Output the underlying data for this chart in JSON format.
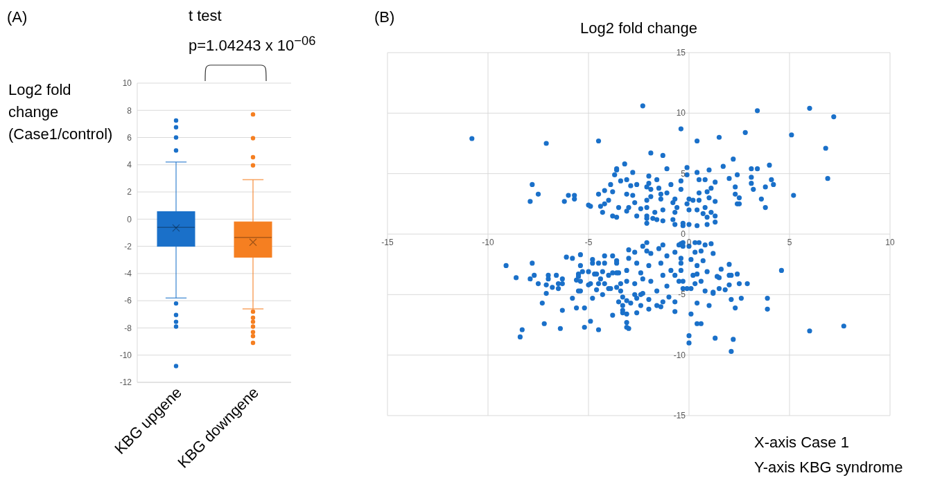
{
  "chart_data": [
    {
      "type": "box",
      "annotations": [
        "(A)",
        "t test",
        "p=1.04243 x 10$^{−06}$"
      ],
      "ylabel": "Log2 fold change (Case1/control)",
      "categories": [
        "KBG upgene",
        "KBG downgene"
      ],
      "colors": [
        "#1a70c9",
        "#f57f21"
      ],
      "boxes": [
        {
          "low": -5.8,
          "q1": -2,
          "median": -0.6,
          "q3": 0.55,
          "high": 4.2,
          "mean": -0.65,
          "outliers": [
            7.25,
            6.75,
            6,
            5.05,
            -6.2,
            -7.05,
            -7.55,
            -7.9,
            -10.8
          ]
        },
        {
          "low": -6.6,
          "q1": -2.8,
          "median": -1.35,
          "q3": -0.2,
          "high": 2.9,
          "mean": -1.7,
          "outliers": [
            7.7,
            5.95,
            4.55,
            3.95,
            -6.8,
            -7.25,
            -7.55,
            -7.9,
            -8.3,
            -8.6,
            -9.1
          ]
        }
      ],
      "ylim": [
        -12,
        10
      ],
      "yticks": [
        -12,
        -10,
        -8,
        -6,
        -4,
        -2,
        0,
        2,
        4,
        6,
        8,
        10
      ],
      "grid": "y"
    },
    {
      "type": "scatter",
      "title": "Log2 fold change",
      "annotations": [
        "(B)",
        "X-axis Case 1",
        "Y-axis KBG syndrome"
      ],
      "color": "#1a70c9",
      "marker": "circle",
      "grid": true,
      "x": [
        -10.8,
        -7.1,
        -4.5,
        -2.3,
        -0.4,
        -1.9,
        -1.3,
        -3.2,
        -7.8,
        -7.5,
        -7.9,
        -6.2,
        -6,
        -5.7,
        -5.7,
        -5,
        -4.9,
        -3.6,
        -3.6,
        -3.7,
        -3.4,
        -3.9,
        -4.2,
        -4.5,
        -4.4,
        -4.3,
        -4.2,
        -4,
        -3.8,
        -3.8,
        -3.6,
        -3.5,
        -3.1,
        -2.9,
        -2.8,
        -2.6,
        -3.1,
        -2.8,
        -2.7,
        -3,
        -3.1,
        -2.6,
        -2.4,
        -2,
        -2,
        -2.1,
        -1.9,
        -1.6,
        -1.5,
        -1.1,
        -2.1,
        -1.9,
        -2.1,
        -2.1,
        -2.1,
        -2.1,
        -1.8,
        -1.7,
        -1.6,
        -1.3,
        -1.4,
        -1.1,
        -1.4,
        -1.3,
        -0.9,
        -0.8,
        -0.7,
        -0.8,
        -0.7,
        -0.4,
        -0.1,
        -0.1,
        -0.4,
        0,
        -0.3,
        -0.7,
        -0.6,
        3.4,
        6,
        7.2,
        2.8,
        5.1,
        1.5,
        0.4,
        6.8,
        6.9,
        2.2,
        1.7,
        4,
        3.1,
        3.4,
        1,
        0.4,
        2.4,
        2,
        3.1,
        4.1,
        4.2,
        3.1,
        3.2,
        3.8,
        2.3,
        1.3,
        0.8,
        0.5,
        1.1,
        0.9,
        2.3,
        2.5,
        2.4,
        2.5,
        3.6,
        3.8,
        5.2,
        1.3,
        1,
        0.5,
        0.5,
        0.2,
        0.4,
        0.8,
        1.1,
        1.3,
        0.9,
        0.7,
        1.3,
        0.9,
        0.4,
        0,
        -0.3,
        0,
        -0.1,
        -9.1,
        -8.6,
        -7.8,
        -7.9,
        -7.7,
        -7.5,
        -7.1,
        -7,
        -7,
        -6.8,
        -7.1,
        -6.6,
        -6.5,
        -6.5,
        -6.3,
        -6.3,
        -7.3,
        -6.3,
        -7.2,
        -6.4,
        -8.3,
        -8.4,
        -6.1,
        -5.8,
        -5.4,
        -5.4,
        -5.3,
        -5.5,
        -5.5,
        -5.6,
        -5.4,
        -5.5,
        -5.4,
        -5.8,
        -5.6,
        -5.2,
        -5.2,
        -4.9,
        -4.5,
        -4.8,
        -5,
        -5,
        -4.9,
        -4.6,
        -4.8,
        -4.8,
        -4.7,
        -4.6,
        -4.5,
        -4.4,
        -4.5,
        -4.2,
        -4.2,
        -4.3,
        -4.2,
        -4.3,
        -3.8,
        -4,
        -3.8,
        -3.6,
        -3.6,
        -4,
        -3.9,
        -3.6,
        -3.8,
        -3.6,
        -3.5,
        -3.5,
        -3.3,
        -3.3,
        -3.3,
        -3.3,
        -3.1,
        -3.1,
        -3.1,
        -3,
        -3.4,
        -3.1,
        -2.9,
        -3,
        -3,
        -3.1,
        -3.4,
        -3.1,
        -2.7,
        -2.6,
        -2.4,
        -2.6,
        -2.7,
        -2.4,
        -2.3,
        -2,
        -2,
        -1.6,
        -1.4,
        -0.7,
        -1.3,
        -1,
        -0.7,
        -2.3,
        -2.1,
        -1.3,
        -1.5,
        -2.1,
        -1.9,
        -2,
        -2.6,
        -2.4,
        -2.7,
        -2.3,
        -1.9,
        -1.6,
        -1.3,
        -1.1,
        -1.4,
        -1.1,
        -0.7,
        -0.5,
        -0.4,
        -0.3,
        -0.7,
        -0.4,
        -0.5,
        -0.9,
        -0.1,
        0.1,
        0,
        0,
        4.6,
        2.9,
        2.5,
        2,
        2.4,
        2,
        2.1,
        2,
        1.6,
        1.5,
        1.4,
        1.5,
        1.8,
        1.2,
        1.2,
        0.8,
        2.1,
        2.6,
        3.9,
        3.9,
        2.3,
        1,
        0.4,
        0.4,
        0.6,
        1.3,
        2.2,
        2.1,
        6,
        7.7,
        1.2,
        0.8,
        1.1,
        0.5,
        0.3,
        0.6,
        0.3,
        0.1,
        0.7,
        0.4,
        0.9,
        0.4,
        0.2,
        0.6,
        0.3,
        0.1,
        -0.3,
        -0.3,
        -0.4,
        -0.4,
        -0.3,
        0
      ],
      "values": [
        7.9,
        7.5,
        7.7,
        10.6,
        8.7,
        6.7,
        6.5,
        5.8,
        4.1,
        3.3,
        2.7,
        2.7,
        3.2,
        3.2,
        2.9,
        2.4,
        2.3,
        5.4,
        5.3,
        4.9,
        4.4,
        4.1,
        3.6,
        3.3,
        2.3,
        1.8,
        2.5,
        2.8,
        3.5,
        1.5,
        1.4,
        2.2,
        4.5,
        4,
        5.1,
        4.1,
        3.3,
        3.2,
        2.6,
        2.2,
        1.9,
        1.5,
        2.1,
        4.8,
        4.2,
        3.9,
        3.7,
        4.5,
        3.8,
        5.4,
        2.8,
        3.1,
        2.2,
        1.5,
        1.3,
        0.9,
        1.3,
        1.8,
        1.2,
        1.1,
        3.3,
        3.4,
        2.9,
        2,
        4.1,
        2.6,
        1.8,
        1.2,
        0.8,
        4.4,
        5.5,
        4.9,
        3.7,
        2.9,
        0.9,
        2.9,
        2.2,
        10.2,
        10.4,
        9.7,
        8.4,
        8.2,
        8,
        7.7,
        7.1,
        4.6,
        6.2,
        5.6,
        5.7,
        5.4,
        5.4,
        5.3,
        5.1,
        4.9,
        4.6,
        4.7,
        4.5,
        4.1,
        4.2,
        3.7,
        3.9,
        3.9,
        4.3,
        4.5,
        4.5,
        3.8,
        3.5,
        3.3,
        3,
        2.5,
        2.5,
        2.9,
        2.2,
        3.2,
        2.7,
        3,
        2.8,
        3.4,
        2.8,
        2,
        2.2,
        1.8,
        1.5,
        1.4,
        1.7,
        1,
        0.8,
        0.7,
        0.8,
        0.7,
        2,
        2.5,
        -2.6,
        -3.6,
        -2.4,
        -3.7,
        -3.4,
        -4.1,
        -4.2,
        -3.4,
        -3.7,
        -4.4,
        -4.9,
        -3.4,
        -4.1,
        -4.5,
        -3.7,
        -4.1,
        -5.7,
        -6.3,
        -7.4,
        -7.8,
        -7.9,
        -8.5,
        -1.9,
        -2,
        -1.7,
        -2.6,
        -3.1,
        -3.3,
        -3.5,
        -3.8,
        -3.9,
        -4.7,
        -4.7,
        -5.3,
        -6.1,
        -6.1,
        -7.7,
        -7.2,
        -7.9,
        -5.3,
        -3.1,
        -4.2,
        -4.1,
        -4.6,
        -2.1,
        -2.4,
        -3.3,
        -3.3,
        -2.4,
        -3.7,
        -4.1,
        -1.8,
        -2.4,
        -3.1,
        -4.1,
        -5,
        -6.7,
        -3.4,
        -1.8,
        -2.2,
        -2.4,
        -4.5,
        -4.5,
        -4.4,
        -3.2,
        -3.2,
        -3.2,
        -5.6,
        -5.2,
        -5.9,
        -6.3,
        -6.5,
        -6.6,
        -7.3,
        -7.7,
        -7.8,
        -4.7,
        -5.5,
        -5.7,
        -1.3,
        -2,
        -3,
        -4.1,
        -3.9,
        -1.5,
        -6.5,
        -5.9,
        -5.3,
        -5,
        -5,
        -4.9,
        -5.4,
        -6.2,
        -5.9,
        -6,
        -6.4,
        -5.6,
        -5.2,
        -5.6,
        -1,
        -0.7,
        -0.9,
        -1.2,
        -1.4,
        -1.6,
        -2.6,
        -2.4,
        -3.2,
        -4.1,
        -3.7,
        -3.9,
        -4.7,
        -3.4,
        -4.3,
        -2.4,
        -1.8,
        -1.5,
        -0.9,
        -0.8,
        -0.7,
        -3.4,
        -2.4,
        -3.9,
        -3,
        -4.5,
        -6.6,
        -8.4,
        -9,
        -3,
        -4.1,
        -4.1,
        -4.2,
        -3.3,
        -3.4,
        -3.4,
        -2.5,
        -2.9,
        -3.6,
        -3.5,
        -4.5,
        -4.6,
        -4.8,
        -4.9,
        -4.7,
        -5.4,
        -5.3,
        -5.3,
        -6.2,
        -6.1,
        -5.9,
        -5.7,
        -7.4,
        -7.4,
        -8.6,
        -8.7,
        -9.7,
        -8,
        -7.6,
        -1.6,
        -0.9,
        -0.8,
        -0.7,
        -0.7,
        -1.4,
        -1.5,
        -2.1,
        -2.2,
        -2.6,
        -3.1,
        -3.3,
        -3.4,
        -3.9,
        -4.1,
        -4.5,
        -4.5,
        -3.9,
        -3,
        -2,
        -1,
        -1
      ],
      "xlim": [
        -15,
        10
      ],
      "xticks": [
        -15,
        -10,
        -5,
        0,
        5,
        10
      ],
      "ylim": [
        -15,
        15
      ],
      "yticks": [
        -15,
        -10,
        -5,
        0,
        5,
        10,
        15
      ]
    }
  ]
}
